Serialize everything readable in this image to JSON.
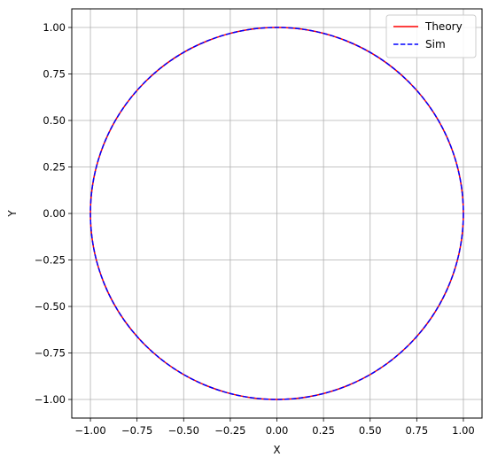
{
  "chart_data": {
    "type": "line",
    "title": "",
    "xlabel": "X",
    "ylabel": "Y",
    "xlim": [
      -1.1,
      1.1
    ],
    "ylim": [
      -1.1,
      1.1
    ],
    "x_ticks": [
      -1.0,
      -0.75,
      -0.5,
      -0.25,
      0.0,
      0.25,
      0.5,
      0.75,
      1.0
    ],
    "y_ticks": [
      -1.0,
      -0.75,
      -0.5,
      -0.25,
      0.0,
      0.25,
      0.5,
      0.75,
      1.0
    ],
    "x_tick_labels": [
      "−1.00",
      "−0.75",
      "−0.50",
      "−0.25",
      "0.00",
      "0.25",
      "0.50",
      "0.75",
      "1.00"
    ],
    "y_tick_labels": [
      "−1.00",
      "−0.75",
      "−0.50",
      "−0.25",
      "0.00",
      "0.25",
      "0.50",
      "0.75",
      "1.00"
    ],
    "grid": true,
    "legend_position": "top-right",
    "series": [
      {
        "name": "Theory",
        "shape": "circle",
        "center": [
          0,
          0
        ],
        "radius": 1.0,
        "color": "#ff0000",
        "line_style": "solid"
      },
      {
        "name": "Sim",
        "shape": "circle",
        "center": [
          0,
          0
        ],
        "radius": 1.0,
        "color": "#0000ff",
        "line_style": "dashed"
      }
    ]
  }
}
